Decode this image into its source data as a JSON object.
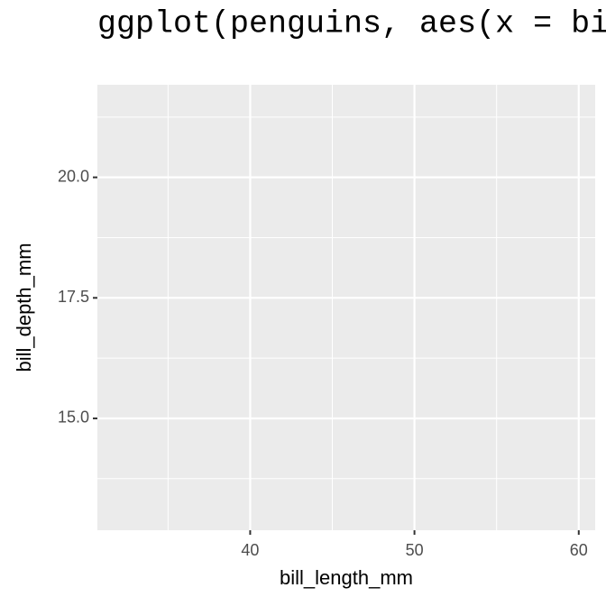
{
  "chart_data": {
    "type": "scatter",
    "title": "ggplot(penguins, aes(x = bi",
    "x_label": "bill_length_mm",
    "y_label": "bill_depth_mm",
    "xlim": [
      30.7,
      61.0
    ],
    "ylim": [
      12.68,
      21.92
    ],
    "xticks": [
      40,
      50,
      60
    ],
    "yticks": [
      {
        "value": 15,
        "label": "15.0"
      },
      {
        "value": 17.5,
        "label": "17.5"
      },
      {
        "value": 20,
        "label": "20.0"
      }
    ],
    "grid": true,
    "minor_grid": true
  }
}
